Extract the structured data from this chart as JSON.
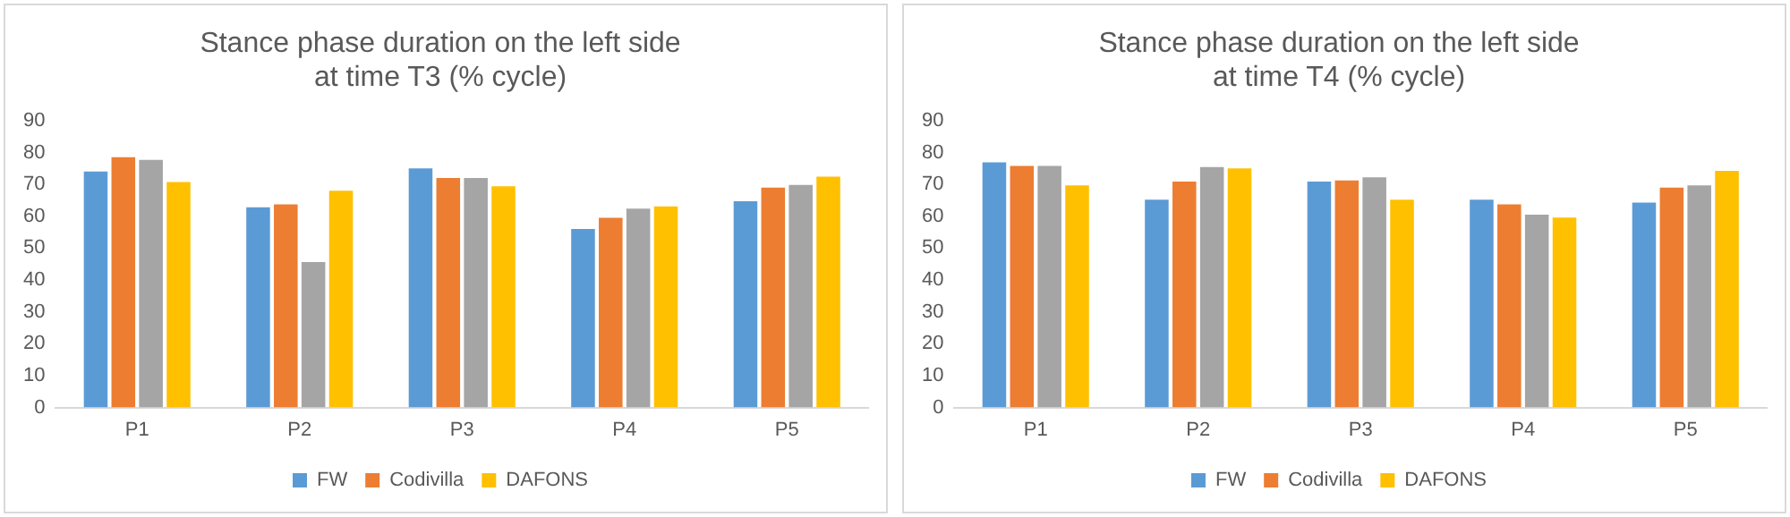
{
  "chart_data": [
    {
      "type": "bar",
      "title": "Stance phase duration on the left side\nat time T3 (% cycle)",
      "categories": [
        "P1",
        "P2",
        "P3",
        "P4",
        "P5"
      ],
      "series": [
        {
          "name": "FW",
          "color": "#5b9bd5",
          "values": [
            74,
            62.8,
            75,
            56,
            64.7
          ]
        },
        {
          "name": "Codivilla",
          "color": "#ed7d31",
          "values": [
            78.5,
            63.7,
            72,
            59.5,
            69
          ]
        },
        {
          "color": "#a5a5a5",
          "values": [
            77.7,
            45.6,
            72,
            62.4,
            69.8
          ]
        },
        {
          "name": "DAFONS",
          "color": "#ffc000",
          "values": [
            70.7,
            68,
            69.4,
            63.1,
            72.4
          ]
        }
      ],
      "ylim": [
        0,
        90
      ],
      "yticks": [
        0,
        10,
        20,
        30,
        40,
        50,
        60,
        70,
        80,
        90
      ],
      "grid": false,
      "legend": "bottom"
    },
    {
      "type": "bar",
      "title": "Stance phase duration on the left side\nat time T4 (% cycle)",
      "categories": [
        "P1",
        "P2",
        "P3",
        "P4",
        "P5"
      ],
      "series": [
        {
          "name": "FW",
          "color": "#5b9bd5",
          "values": [
            76.9,
            65.2,
            70.9,
            65.2,
            64.3
          ]
        },
        {
          "name": "Codivilla",
          "color": "#ed7d31",
          "values": [
            75.8,
            70.9,
            71.2,
            63.7,
            69
          ]
        },
        {
          "color": "#a5a5a5",
          "values": [
            75.8,
            75.4,
            72.2,
            60.5,
            69.7
          ]
        },
        {
          "name": "DAFONS",
          "color": "#ffc000",
          "values": [
            69.7,
            75,
            65.2,
            59.6,
            74.2
          ]
        }
      ],
      "ylim": [
        0,
        90
      ],
      "yticks": [
        0,
        10,
        20,
        30,
        40,
        50,
        60,
        70,
        80,
        90
      ],
      "grid": false,
      "legend": "bottom"
    }
  ]
}
